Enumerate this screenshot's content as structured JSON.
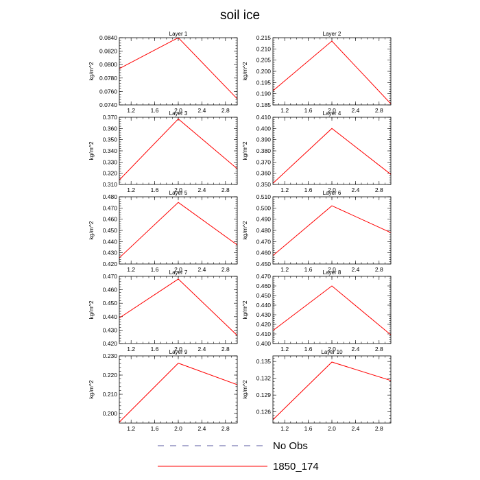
{
  "figure": {
    "title": "soil ice"
  },
  "legend": [
    {
      "label": "No Obs",
      "color": "#5a5aa0",
      "dash": "dashed"
    },
    {
      "label": "1850_174",
      "color": "#ff0000",
      "dash": "solid"
    }
  ],
  "chart_data": [
    {
      "type": "line",
      "title": "Layer 1",
      "ylabel": "kg/m^2",
      "xlim": [
        1.0,
        3.0
      ],
      "ylim": [
        0.074,
        0.084
      ],
      "xticks": [
        "1.2",
        "1.6",
        "2.0",
        "2.4",
        "2.8"
      ],
      "yticks": [
        "0.0740",
        "0.0760",
        "0.0780",
        "0.0800",
        "0.0820",
        "0.0840"
      ],
      "series": [
        {
          "name": "1850_174",
          "color": "#ff0000",
          "x": [
            1,
            2,
            3
          ],
          "y": [
            0.0794,
            0.084,
            0.0749
          ]
        }
      ]
    },
    {
      "type": "line",
      "title": "Layer 2",
      "ylabel": "kg/m^2",
      "xlim": [
        1.0,
        3.0
      ],
      "ylim": [
        0.185,
        0.215
      ],
      "xticks": [
        "1.2",
        "1.6",
        "2.0",
        "2.4",
        "2.8"
      ],
      "yticks": [
        "0.185",
        "0.190",
        "0.195",
        "0.200",
        "0.205",
        "0.210",
        "0.215"
      ],
      "series": [
        {
          "name": "1850_174",
          "color": "#ff0000",
          "x": [
            1,
            2,
            3
          ],
          "y": [
            0.1913,
            0.2135,
            0.1855
          ]
        }
      ]
    },
    {
      "type": "line",
      "title": "Layer 3",
      "ylabel": "kg/m^2",
      "xlim": [
        1.0,
        3.0
      ],
      "ylim": [
        0.31,
        0.37
      ],
      "xticks": [
        "1.2",
        "1.6",
        "2.0",
        "2.4",
        "2.8"
      ],
      "yticks": [
        "0.310",
        "0.320",
        "0.330",
        "0.340",
        "0.350",
        "0.360",
        "0.370"
      ],
      "series": [
        {
          "name": "1850_174",
          "color": "#ff0000",
          "x": [
            1,
            2,
            3
          ],
          "y": [
            0.314,
            0.3685,
            0.324
          ]
        }
      ]
    },
    {
      "type": "line",
      "title": "Layer 4",
      "ylabel": "kg/m^2",
      "xlim": [
        1.0,
        3.0
      ],
      "ylim": [
        0.35,
        0.41
      ],
      "xticks": [
        "1.2",
        "1.6",
        "2.0",
        "2.4",
        "2.8"
      ],
      "yticks": [
        "0.350",
        "0.360",
        "0.370",
        "0.380",
        "0.390",
        "0.400",
        "0.410"
      ],
      "series": [
        {
          "name": "1850_174",
          "color": "#ff0000",
          "x": [
            1,
            2,
            3
          ],
          "y": [
            0.351,
            0.4,
            0.359
          ]
        }
      ]
    },
    {
      "type": "line",
      "title": "Layer 5",
      "ylabel": "kg/m^2",
      "xlim": [
        1.0,
        3.0
      ],
      "ylim": [
        0.42,
        0.48
      ],
      "xticks": [
        "1.2",
        "1.6",
        "2.0",
        "2.4",
        "2.8"
      ],
      "yticks": [
        "0.420",
        "0.430",
        "0.440",
        "0.450",
        "0.460",
        "0.470",
        "0.480"
      ],
      "series": [
        {
          "name": "1850_174",
          "color": "#ff0000",
          "x": [
            1,
            2,
            3
          ],
          "y": [
            0.4255,
            0.475,
            0.437
          ]
        }
      ]
    },
    {
      "type": "line",
      "title": "Layer 6",
      "ylabel": "kg/m^2",
      "xlim": [
        1.0,
        3.0
      ],
      "ylim": [
        0.45,
        0.51
      ],
      "xticks": [
        "1.2",
        "1.6",
        "2.0",
        "2.4",
        "2.8"
      ],
      "yticks": [
        "0.450",
        "0.460",
        "0.470",
        "0.480",
        "0.490",
        "0.500",
        "0.510"
      ],
      "series": [
        {
          "name": "1850_174",
          "color": "#ff0000",
          "x": [
            1,
            2,
            3
          ],
          "y": [
            0.4575,
            0.502,
            0.478
          ]
        }
      ]
    },
    {
      "type": "line",
      "title": "Layer 7",
      "ylabel": "kg/m^2",
      "xlim": [
        1.0,
        3.0
      ],
      "ylim": [
        0.42,
        0.47
      ],
      "xticks": [
        "1.2",
        "1.6",
        "2.0",
        "2.4",
        "2.8"
      ],
      "yticks": [
        "0.420",
        "0.430",
        "0.440",
        "0.450",
        "0.460",
        "0.470"
      ],
      "series": [
        {
          "name": "1850_174",
          "color": "#ff0000",
          "x": [
            1,
            2,
            3
          ],
          "y": [
            0.439,
            0.468,
            0.426
          ]
        }
      ]
    },
    {
      "type": "line",
      "title": "Layer 8",
      "ylabel": "kg/m^2",
      "xlim": [
        1.0,
        3.0
      ],
      "ylim": [
        0.4,
        0.47
      ],
      "xticks": [
        "1.2",
        "1.6",
        "2.0",
        "2.4",
        "2.8"
      ],
      "yticks": [
        "0.400",
        "0.410",
        "0.420",
        "0.430",
        "0.440",
        "0.450",
        "0.460",
        "0.470"
      ],
      "series": [
        {
          "name": "1850_174",
          "color": "#ff0000",
          "x": [
            1,
            2,
            3
          ],
          "y": [
            0.4135,
            0.46,
            0.409
          ]
        }
      ]
    },
    {
      "type": "line",
      "title": "Layer 9",
      "ylabel": "kg/m^2",
      "xlim": [
        1.0,
        3.0
      ],
      "ylim": [
        0.195,
        0.23
      ],
      "xticks": [
        "1.2",
        "1.6",
        "2.0",
        "2.4",
        "2.8"
      ],
      "yticks": [
        "0.200",
        "0.210",
        "0.220",
        "0.230"
      ],
      "series": [
        {
          "name": "1850_174",
          "color": "#ff0000",
          "x": [
            1,
            2,
            3
          ],
          "y": [
            0.1955,
            0.2262,
            0.215
          ]
        }
      ]
    },
    {
      "type": "line",
      "title": "Layer 10",
      "ylabel": "kg/m^2",
      "xlim": [
        1.0,
        3.0
      ],
      "ylim": [
        0.124,
        0.136
      ],
      "xticks": [
        "1.2",
        "1.6",
        "2.0",
        "2.4",
        "2.8"
      ],
      "yticks": [
        "0.126",
        "0.129",
        "0.132",
        "0.135"
      ],
      "series": [
        {
          "name": "1850_174",
          "color": "#ff0000",
          "x": [
            1,
            2,
            3
          ],
          "y": [
            0.1246,
            0.1349,
            0.1316
          ]
        }
      ]
    }
  ]
}
